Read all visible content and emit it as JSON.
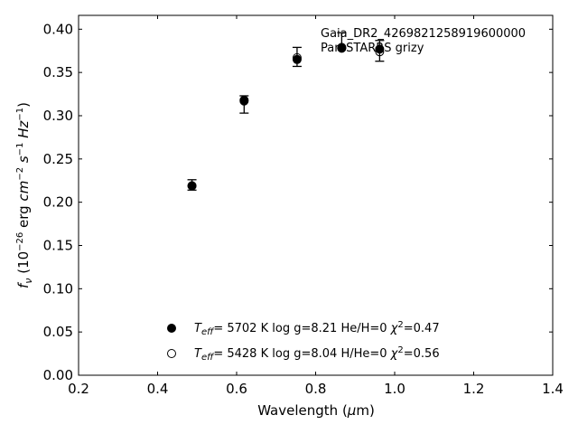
{
  "chart_data": {
    "type": "scatter",
    "xlabel": "Wavelength (μm)",
    "ylabel": "f_ν (10^-26 erg cm^-2 s^-1 Hz^-1)",
    "xlim": [
      0.2,
      1.4
    ],
    "ylim": [
      0.0,
      0.416
    ],
    "x_ticks": [
      "0.2",
      "0.4",
      "0.6",
      "0.8",
      "1.0",
      "1.2",
      "1.4"
    ],
    "y_ticks": [
      "0.00",
      "0.05",
      "0.10",
      "0.15",
      "0.20",
      "0.25",
      "0.30",
      "0.35",
      "0.40"
    ],
    "annotations": [
      "Gaia_DR2_4269821258919600000",
      "Pan-STARRS grizy"
    ],
    "observed": {
      "x": [
        0.487,
        0.619,
        0.753,
        0.866,
        0.962
      ],
      "y": [
        0.22,
        0.313,
        0.368,
        0.387,
        0.375
      ],
      "yerr": [
        0.006,
        0.01,
        0.011,
        0.009,
        0.012
      ]
    },
    "series": [
      {
        "name": "Teff= 5702 K  log g=8.21  He/H=0  χ²=0.47",
        "marker": "filled-circle",
        "x": [
          0.487,
          0.619,
          0.753,
          0.866,
          0.962
        ],
        "y": [
          0.219,
          0.318,
          0.365,
          0.378,
          0.377
        ]
      },
      {
        "name": "Teff= 5428 K  log g=8.04  H/He=0  χ²=0.56",
        "marker": "open-circle",
        "x": [
          0.487,
          0.619,
          0.753,
          0.866,
          0.962
        ],
        "y": [
          0.219,
          0.317,
          0.367,
          0.379,
          0.374
        ]
      }
    ],
    "legend": {
      "placement": "lower-center",
      "entries": [
        {
          "teff_value": "5702 K",
          "logg": "log g=8.21",
          "comp": "He/H=0",
          "chi": "=0.47"
        },
        {
          "teff_value": "5428 K",
          "logg": "log g=8.04",
          "comp": "H/He=0",
          "chi": "=0.56"
        }
      ]
    },
    "grid": false
  }
}
